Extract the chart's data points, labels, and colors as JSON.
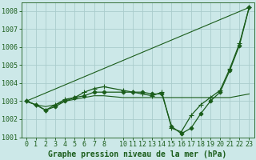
{
  "title": "Graphe pression niveau de la mer (hPa)",
  "background_color": "#cce8e8",
  "plot_bg_color": "#cce8e8",
  "grid_color": "#aacccc",
  "line_color": "#1a5c1a",
  "xlim": [
    -0.5,
    23.5
  ],
  "ylim": [
    1001.0,
    1008.5
  ],
  "yticks": [
    1001,
    1002,
    1003,
    1004,
    1005,
    1006,
    1007,
    1008
  ],
  "xticks": [
    0,
    1,
    2,
    3,
    4,
    5,
    6,
    7,
    8,
    10,
    11,
    12,
    13,
    14,
    15,
    16,
    17,
    18,
    19,
    20,
    21,
    22,
    23
  ],
  "series": [
    {
      "x": [
        0,
        23
      ],
      "y": [
        1003.0,
        1008.2
      ],
      "marker": null,
      "marker_size": 0,
      "linewidth": 0.8
    },
    {
      "x": [
        0,
        1,
        2,
        3,
        4,
        5,
        6,
        7,
        8,
        10,
        11,
        12,
        13,
        14,
        15,
        16,
        17,
        18,
        19,
        20,
        21,
        22,
        23
      ],
      "y": [
        1003.0,
        1002.8,
        1002.7,
        1002.8,
        1003.0,
        1003.1,
        1003.2,
        1003.3,
        1003.3,
        1003.2,
        1003.2,
        1003.2,
        1003.2,
        1003.2,
        1003.2,
        1003.2,
        1003.2,
        1003.2,
        1003.2,
        1003.2,
        1003.2,
        1003.3,
        1003.4
      ],
      "marker": null,
      "marker_size": 0,
      "linewidth": 0.8
    },
    {
      "x": [
        0,
        1,
        2,
        3,
        4,
        5,
        6,
        7,
        8,
        10,
        11,
        12,
        13,
        14,
        15,
        16,
        17,
        18,
        19,
        20,
        21,
        22,
        23
      ],
      "y": [
        1003.0,
        1002.8,
        1002.5,
        1002.7,
        1003.0,
        1003.2,
        1003.3,
        1003.5,
        1003.5,
        1003.5,
        1003.5,
        1003.5,
        1003.4,
        1003.4,
        1001.6,
        1001.2,
        1001.5,
        1002.3,
        1003.0,
        1003.5,
        1004.7,
        1006.1,
        1008.2
      ],
      "marker": "D",
      "marker_size": 2.5,
      "linewidth": 0.9
    },
    {
      "x": [
        0,
        1,
        2,
        3,
        4,
        5,
        6,
        7,
        8,
        10,
        11,
        12,
        13,
        14,
        15,
        16,
        17,
        18,
        19,
        20,
        21,
        22,
        23
      ],
      "y": [
        1003.0,
        1002.8,
        1002.5,
        1002.8,
        1003.1,
        1003.2,
        1003.5,
        1003.7,
        1003.8,
        1003.6,
        1003.5,
        1003.4,
        1003.3,
        1003.5,
        1001.5,
        1001.3,
        1002.2,
        1002.8,
        1003.2,
        1003.6,
        1004.8,
        1006.2,
        1008.2
      ],
      "marker": "+",
      "marker_size": 4,
      "linewidth": 0.9
    }
  ],
  "title_fontsize": 7,
  "tick_fontsize": 6,
  "tick_color": "#1a5c1a",
  "axis_label_color": "#1a5c1a"
}
